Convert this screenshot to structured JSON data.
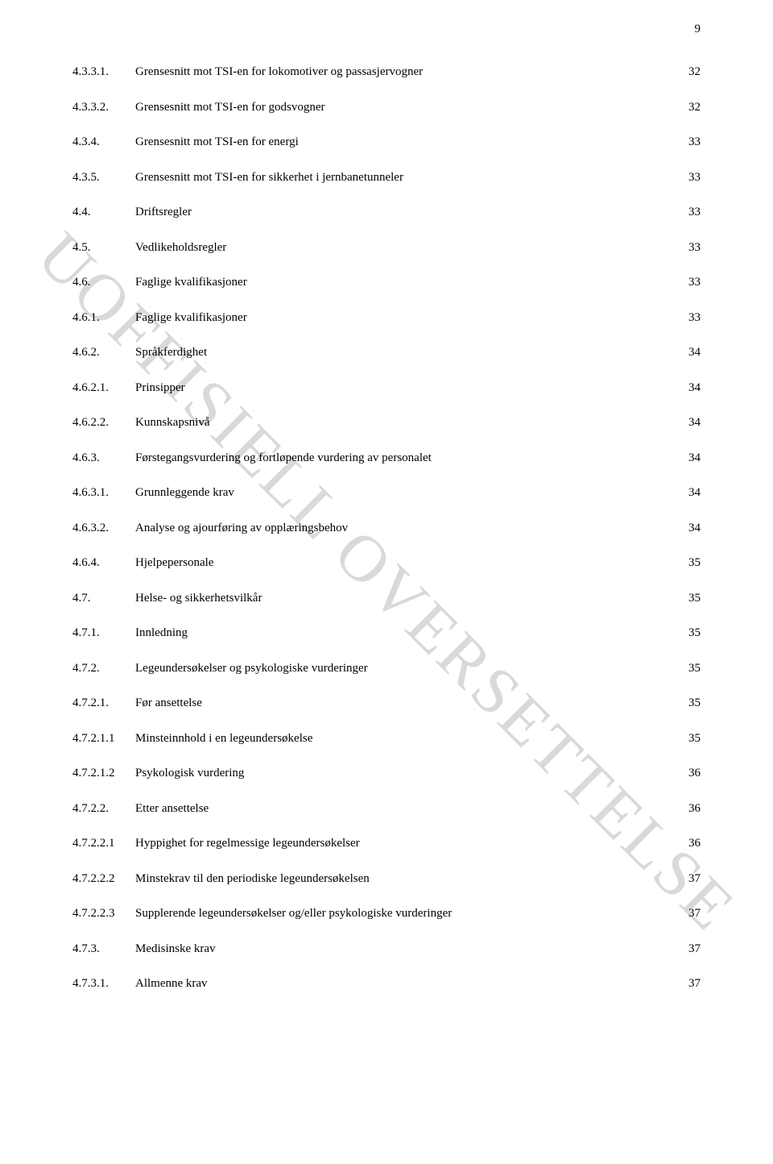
{
  "page_number": "9",
  "watermark": "UOFFISIELL OVERSETTELSE",
  "toc": [
    {
      "num": "4.3.3.1.",
      "title": "Grensesnitt mot TSI-en for lokomotiver og passasjervogner",
      "page": "32"
    },
    {
      "num": "4.3.3.2.",
      "title": "Grensesnitt mot TSI-en for godsvogner",
      "page": "32"
    },
    {
      "num": "4.3.4.",
      "title": "Grensesnitt mot TSI-en for energi",
      "page": "33"
    },
    {
      "num": "4.3.5.",
      "title": "Grensesnitt mot TSI-en for sikkerhet i jernbanetunneler",
      "page": "33"
    },
    {
      "num": "4.4.",
      "title": "Driftsregler",
      "page": "33"
    },
    {
      "num": "4.5.",
      "title": "Vedlikeholdsregler",
      "page": "33"
    },
    {
      "num": "4.6.",
      "title": "Faglige kvalifikasjoner",
      "page": "33"
    },
    {
      "num": "4.6.1.",
      "title": "Faglige kvalifikasjoner",
      "page": "33"
    },
    {
      "num": "4.6.2.",
      "title": "Språkferdighet",
      "page": "34"
    },
    {
      "num": "4.6.2.1.",
      "title": "Prinsipper",
      "page": "34"
    },
    {
      "num": "4.6.2.2.",
      "title": "Kunnskapsnivå",
      "page": "34"
    },
    {
      "num": "4.6.3.",
      "title": "Førstegangsvurdering og fortløpende vurdering av personalet",
      "page": "34"
    },
    {
      "num": "4.6.3.1.",
      "title": "Grunnleggende krav",
      "page": "34"
    },
    {
      "num": "4.6.3.2.",
      "title": "Analyse og ajourføring av opplæringsbehov",
      "page": "34"
    },
    {
      "num": "4.6.4.",
      "title": "Hjelpepersonale",
      "page": "35"
    },
    {
      "num": "4.7.",
      "title": "Helse- og sikkerhetsvilkår",
      "page": "35"
    },
    {
      "num": "4.7.1.",
      "title": "Innledning",
      "page": "35"
    },
    {
      "num": "4.7.2.",
      "title": "Legeundersøkelser og psykologiske vurderinger",
      "page": "35"
    },
    {
      "num": "4.7.2.1.",
      "title": "Før ansettelse",
      "page": "35"
    },
    {
      "num": "4.7.2.1.1",
      "title": "Minsteinnhold i en legeundersøkelse",
      "page": "35"
    },
    {
      "num": "4.7.2.1.2",
      "title": "Psykologisk vurdering",
      "page": "36"
    },
    {
      "num": "4.7.2.2.",
      "title": "Etter ansettelse",
      "page": "36"
    },
    {
      "num": "4.7.2.2.1",
      "title": "Hyppighet for regelmessige legeundersøkelser",
      "page": "36"
    },
    {
      "num": "4.7.2.2.2",
      "title": "Minstekrav til den periodiske legeundersøkelsen",
      "page": "37"
    },
    {
      "num": "4.7.2.2.3",
      "title": "Supplerende legeundersøkelser og/eller psykologiske vurderinger",
      "page": "37"
    },
    {
      "num": "4.7.3.",
      "title": "Medisinske krav",
      "page": "37"
    },
    {
      "num": "4.7.3.1.",
      "title": "Allmenne krav",
      "page": "37"
    }
  ]
}
